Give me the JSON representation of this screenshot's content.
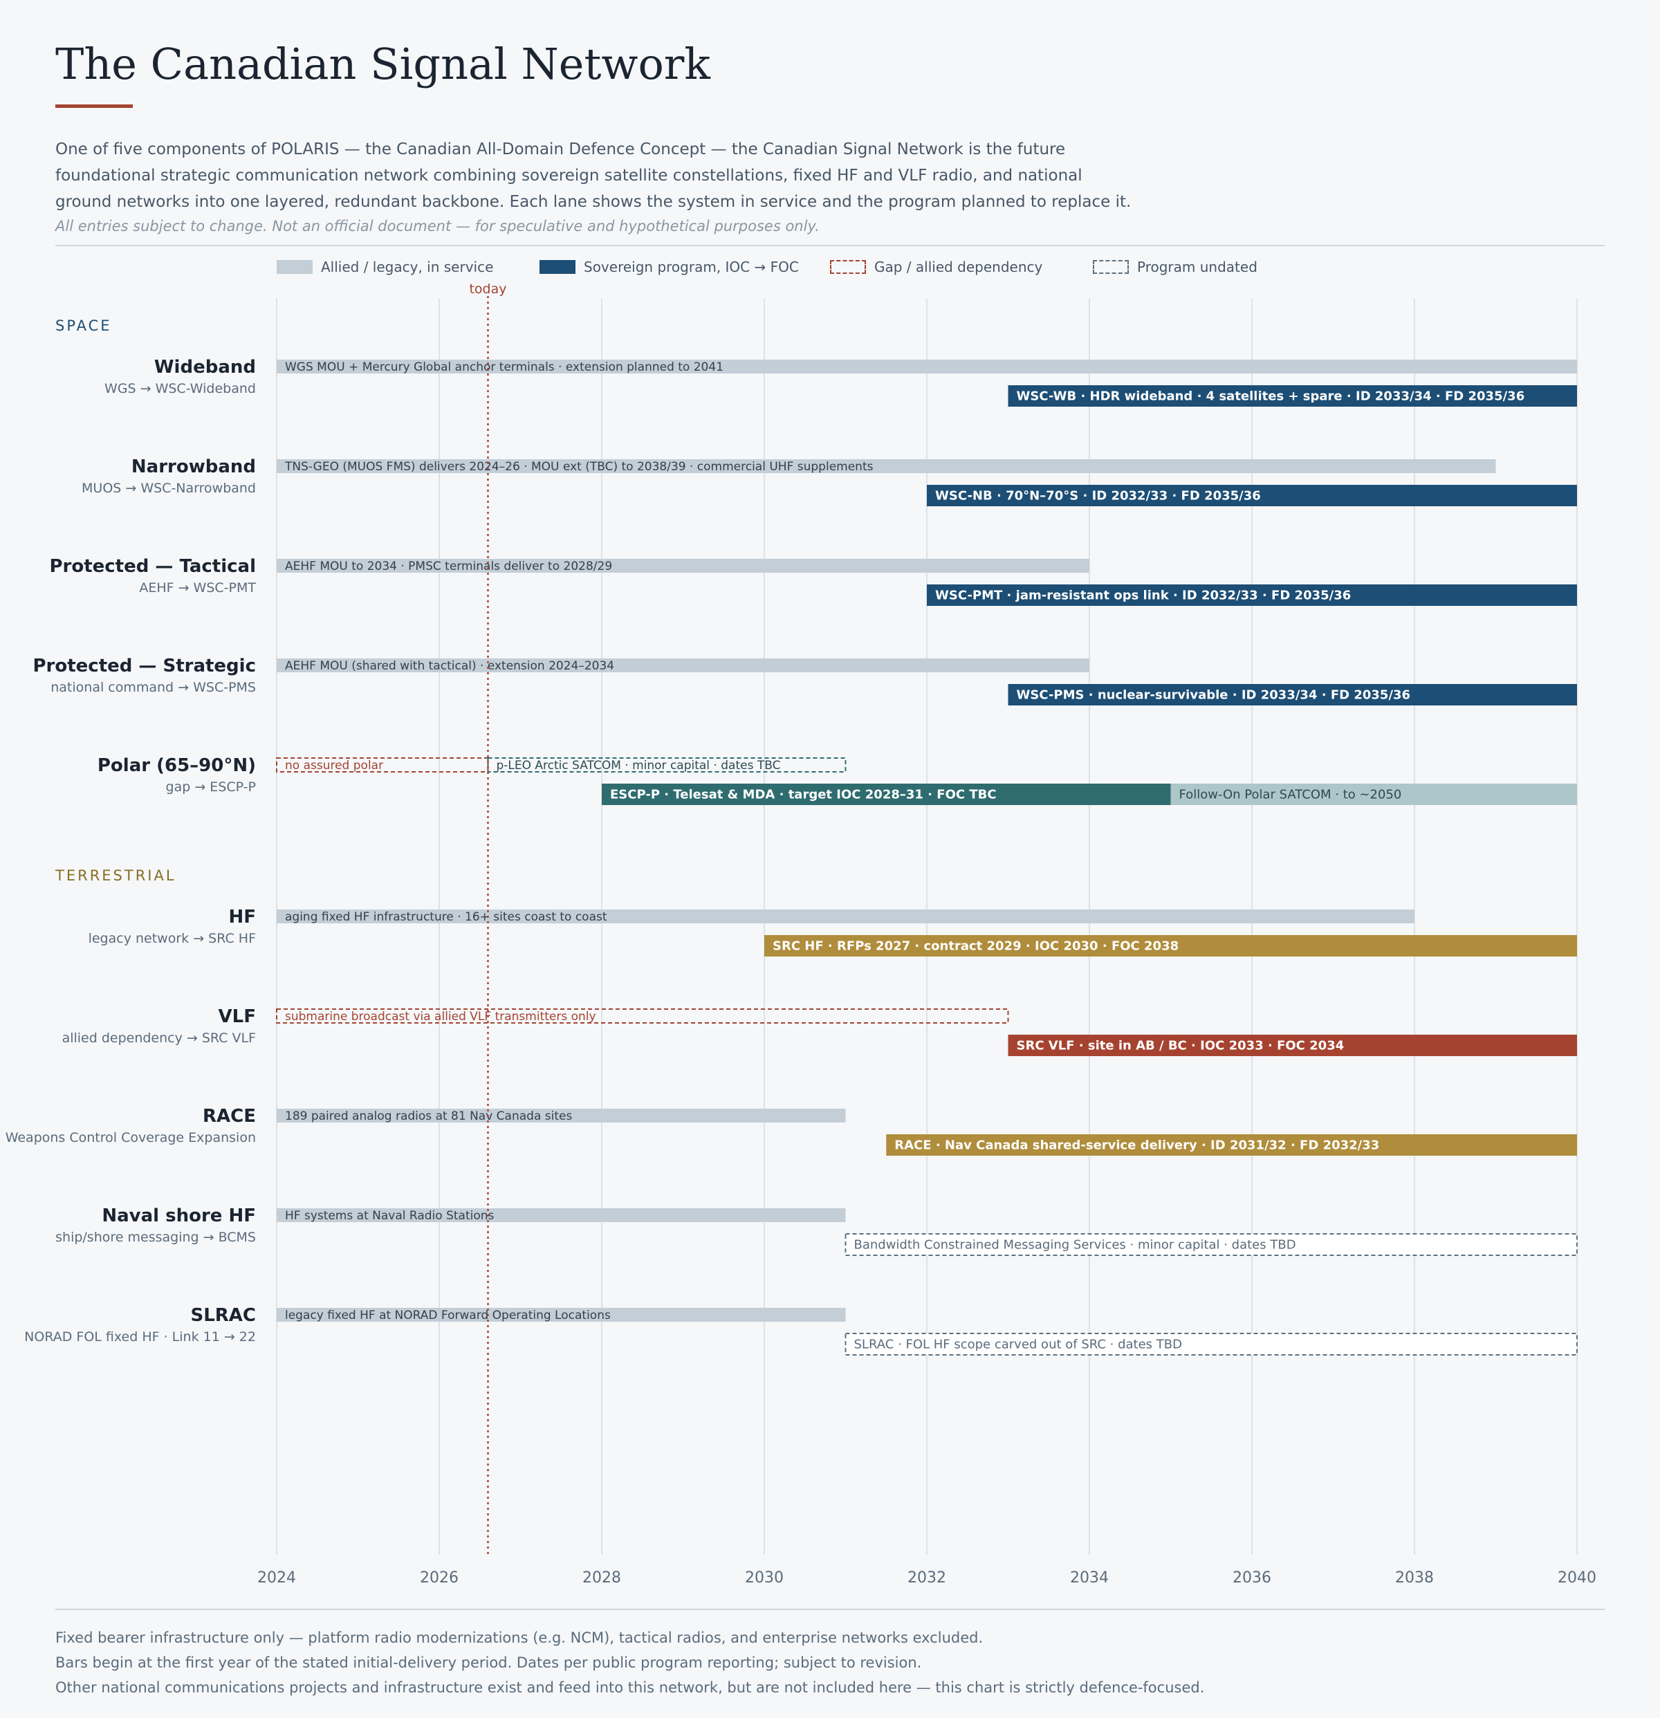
{
  "header": {
    "title": "The Canadian Signal Network",
    "intro_lines": [
      "One of five components of POLARIS — the Canadian All-Domain Defence Concept — the Canadian Signal Network is the future",
      "foundational strategic communication network combining sovereign satellite constellations, fixed HF and VLF radio, and national",
      "ground networks into one layered, redundant backbone. Each lane shows the system in service and the program planned to replace it."
    ],
    "disclaimer": "All entries subject to change. Not an official document — for speculative and hypothetical purposes only."
  },
  "legend": [
    {
      "label": "Allied / legacy, in service",
      "style": "legacy"
    },
    {
      "label": "Sovereign program, IOC → FOC",
      "style": "program"
    },
    {
      "label": "Gap / allied dependency",
      "style": "gap"
    },
    {
      "label": "Program undated",
      "style": "undated"
    }
  ],
  "colors": {
    "legacy": "#c3ced7",
    "legacy_text": "#34404c",
    "space_program": "#1d4e75",
    "polar_program": "#2f6c6f",
    "polar_followon": "#adc6c9",
    "terrestrial_program": "#b08d3c",
    "vlf_program": "#a64330",
    "gap": "#a64330",
    "undated": "#5b7080",
    "today": "#a64330",
    "space_section": "#1d4e75",
    "terrestrial_section": "#8a6d22",
    "grid": "#dde2e7"
  },
  "chart_data": {
    "type": "timeline",
    "x_range": [
      2024,
      2040
    ],
    "x_ticks": [
      "2024",
      "2026",
      "2028",
      "2030",
      "2032",
      "2034",
      "2036",
      "2038",
      "2040"
    ],
    "today_label": "today",
    "today_value": 2026.6,
    "sections": [
      {
        "label": "SPACE",
        "color_key": "space_section",
        "lanes": [
          {
            "title": "Wideband",
            "subtitle": "WGS → WSC-Wideband",
            "bars": [
              {
                "row": 0,
                "start": 2024,
                "end": 2040,
                "style": "legacy",
                "label": "WGS MOU + Mercury Global anchor terminals · extension planned to 2041"
              },
              {
                "row": 1,
                "start": 2033,
                "end": 2040,
                "style": "program",
                "color_key": "space_program",
                "label": "WSC-WB · HDR wideband · 4 satellites + spare · ID 2033/34 · FD 2035/36"
              }
            ]
          },
          {
            "title": "Narrowband",
            "subtitle": "MUOS → WSC-Narrowband",
            "bars": [
              {
                "row": 0,
                "start": 2024,
                "end": 2039,
                "style": "legacy",
                "label": "TNS-GEO (MUOS FMS) delivers 2024–26 · MOU ext (TBC) to 2038/39 · commercial UHF supplements"
              },
              {
                "row": 1,
                "start": 2032,
                "end": 2040,
                "style": "program",
                "color_key": "space_program",
                "label": "WSC-NB · 70°N–70°S · ID 2032/33 · FD 2035/36"
              }
            ]
          },
          {
            "title": "Protected — Tactical",
            "subtitle": "AEHF → WSC-PMT",
            "bars": [
              {
                "row": 0,
                "start": 2024,
                "end": 2034,
                "style": "legacy",
                "label": "AEHF MOU to 2034 · PMSC terminals deliver to 2028/29"
              },
              {
                "row": 1,
                "start": 2032,
                "end": 2040,
                "style": "program",
                "color_key": "space_program",
                "label": "WSC-PMT · jam-resistant ops link · ID 2032/33 · FD 2035/36"
              }
            ]
          },
          {
            "title": "Protected — Strategic",
            "subtitle": "national command → WSC-PMS",
            "bars": [
              {
                "row": 0,
                "start": 2024,
                "end": 2034,
                "style": "legacy",
                "label": "AEHF MOU (shared with tactical) · extension 2024–2034"
              },
              {
                "row": 1,
                "start": 2033,
                "end": 2040,
                "style": "program",
                "color_key": "space_program",
                "label": "WSC-PMS · nuclear-survivable · ID 2033/34 · FD 2035/36"
              }
            ]
          },
          {
            "title": "Polar (65–90°N)",
            "subtitle": "gap → ESCP-P",
            "bars": [
              {
                "row": 0,
                "start": 2024,
                "end": 2026.6,
                "style": "gap",
                "label": "no assured polar"
              },
              {
                "row": 0,
                "start": 2026.6,
                "end": 2031,
                "style": "undated_teal",
                "label": "p-LEO Arctic SATCOM · minor capital · dates TBC"
              },
              {
                "row": 1,
                "start": 2028,
                "end": 2035,
                "style": "program",
                "color_key": "polar_program",
                "label": "ESCP-P · Telesat & MDA · target IOC 2028–31 · FOC TBC"
              },
              {
                "row": 1,
                "start": 2035,
                "end": 2040,
                "style": "followon",
                "color_key": "polar_followon",
                "label": "Follow-On Polar SATCOM · to ~2050"
              }
            ]
          }
        ]
      },
      {
        "label": "TERRESTRIAL",
        "color_key": "terrestrial_section",
        "lanes": [
          {
            "title": "HF",
            "subtitle": "legacy network → SRC HF",
            "bars": [
              {
                "row": 0,
                "start": 2024,
                "end": 2038,
                "style": "legacy",
                "label": "aging fixed HF infrastructure · 16+ sites coast to coast"
              },
              {
                "row": 1,
                "start": 2030,
                "end": 2040,
                "style": "program",
                "color_key": "terrestrial_program",
                "label": "SRC HF · RFPs 2027 · contract 2029 · IOC 2030 · FOC 2038"
              }
            ]
          },
          {
            "title": "VLF",
            "subtitle": "allied dependency → SRC VLF",
            "bars": [
              {
                "row": 0,
                "start": 2024,
                "end": 2033,
                "style": "gap",
                "label": "submarine broadcast via allied VLF transmitters only"
              },
              {
                "row": 1,
                "start": 2033,
                "end": 2040,
                "style": "program",
                "color_key": "vlf_program",
                "label": "SRC VLF · site in AB / BC · IOC 2033 · FOC 2034"
              }
            ]
          },
          {
            "title": "RACE",
            "subtitle": "Weapons Control Coverage Expansion",
            "bars": [
              {
                "row": 0,
                "start": 2024,
                "end": 2031,
                "style": "legacy",
                "label": "189 paired analog radios at 81 Nav Canada sites"
              },
              {
                "row": 1,
                "start": 2031.5,
                "end": 2040,
                "style": "program",
                "color_key": "terrestrial_program",
                "label": "RACE · Nav Canada shared-service delivery · ID 2031/32 · FD 2032/33"
              }
            ]
          },
          {
            "title": "Naval shore HF",
            "subtitle": "ship/shore messaging → BCMS",
            "bars": [
              {
                "row": 0,
                "start": 2024,
                "end": 2031,
                "style": "legacy",
                "label": "HF systems at Naval Radio Stations"
              },
              {
                "row": 1,
                "start": 2031,
                "end": 2040,
                "style": "undated",
                "label": "Bandwidth Constrained Messaging Services · minor capital · dates TBD"
              }
            ]
          },
          {
            "title": "SLRAC",
            "subtitle": "NORAD FOL fixed HF · Link 11 → 22",
            "bars": [
              {
                "row": 0,
                "start": 2024,
                "end": 2031,
                "style": "legacy",
                "label": "legacy fixed HF at NORAD Forward Operating Locations"
              },
              {
                "row": 1,
                "start": 2031,
                "end": 2040,
                "style": "undated",
                "label": "SLRAC · FOL HF scope carved out of SRC · dates TBD"
              }
            ]
          }
        ]
      }
    ]
  },
  "footer": [
    "Fixed bearer infrastructure only — platform radio modernizations (e.g. NCM), tactical radios, and enterprise networks excluded.",
    "Bars begin at the first year of the stated initial-delivery period. Dates per public program reporting; subject to revision.",
    "Other national communications projects and infrastructure exist and feed into this network, but are not included here — this chart is strictly defence-focused."
  ]
}
